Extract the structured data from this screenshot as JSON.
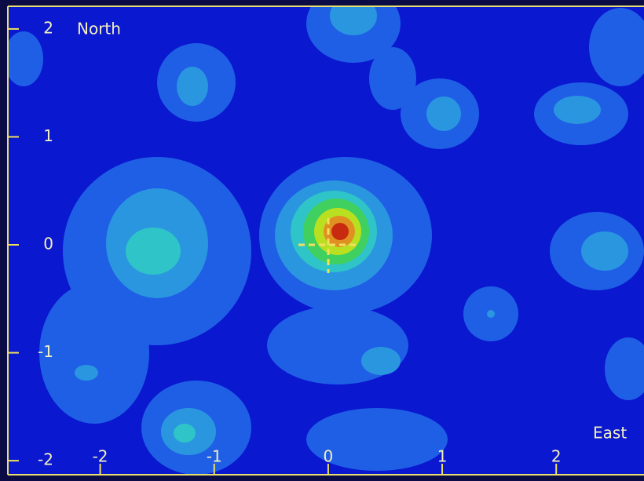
{
  "chart_data": {
    "type": "contour",
    "y_label": "North",
    "x_label": "East",
    "xlim": [
      -2.81,
      2.77
    ],
    "xticks": [
      -2,
      -1,
      0,
      1,
      2
    ],
    "ylim": [
      -2.13,
      2.21
    ],
    "yticks": [
      -2,
      -1,
      0,
      1,
      2
    ],
    "color": "#f0e060"
  }
}
